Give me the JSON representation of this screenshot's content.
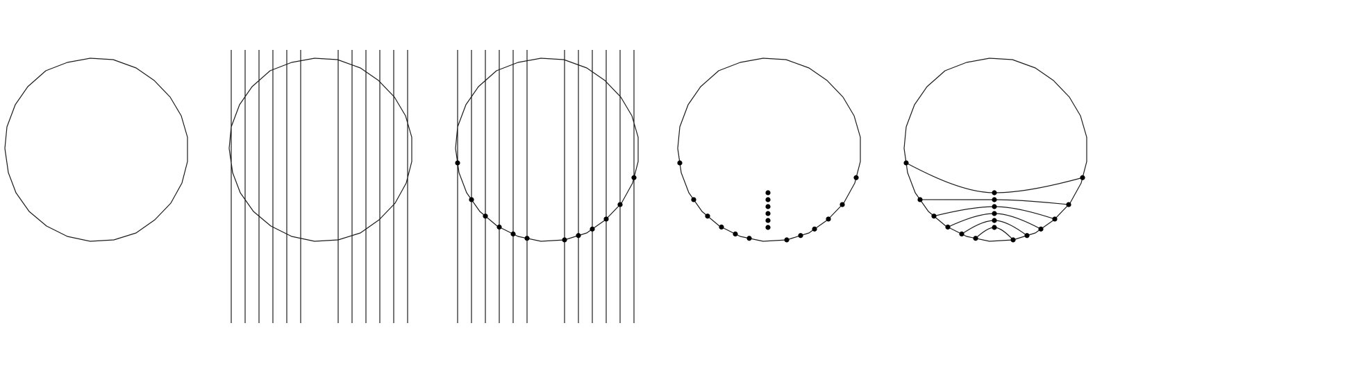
{
  "figure": {
    "panel_count": 5,
    "panels": [
      {
        "id": "p1",
        "shows": [
          "circle"
        ]
      },
      {
        "id": "p2",
        "shows": [
          "circle",
          "vertical-lines"
        ]
      },
      {
        "id": "p3",
        "shows": [
          "circle",
          "vertical-lines",
          "intersection-points"
        ]
      },
      {
        "id": "p4",
        "shows": [
          "circle",
          "boundary-points",
          "center-point-column"
        ]
      },
      {
        "id": "p5",
        "shows": [
          "circle",
          "boundary-points",
          "center-point-column",
          "connecting-curves"
        ]
      }
    ],
    "boundary_points_per_side": 6,
    "center_points": 6,
    "vertical_lines_per_side": 6,
    "colors": {
      "stroke": "#1a1a1a",
      "point": "#000000",
      "background": "#ffffff"
    }
  }
}
